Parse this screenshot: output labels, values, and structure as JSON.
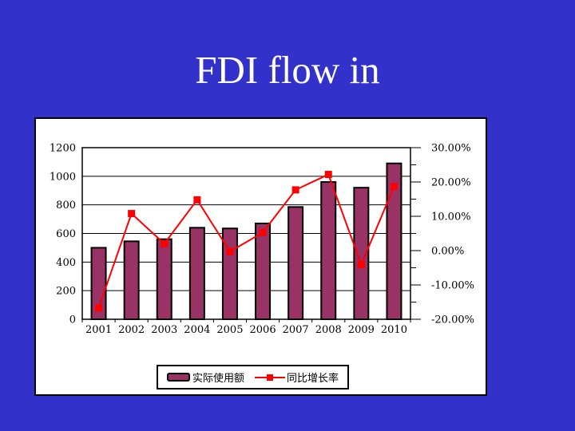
{
  "slide": {
    "background_color": "#3231CA",
    "title": "FDI flow in",
    "title_color": "#FFFFFF"
  },
  "chart_data": {
    "type": "bar+line",
    "title": "",
    "categories": [
      "2001",
      "2002",
      "2003",
      "2004",
      "2005",
      "2006",
      "2007",
      "2008",
      "2009",
      "2010"
    ],
    "series": [
      {
        "name": "实际使用额",
        "type": "bar",
        "axis": "left",
        "color": "#993366",
        "values": [
          500,
          545,
          560,
          640,
          635,
          670,
          785,
          960,
          920,
          1090
        ]
      },
      {
        "name": "同比增长率",
        "type": "line",
        "axis": "right",
        "color": "#FF0000",
        "values": [
          -16.7,
          10.8,
          2.0,
          14.8,
          -0.3,
          5.3,
          17.7,
          22.2,
          -4.1,
          18.7
        ]
      }
    ],
    "left_axis": {
      "min": 0,
      "max": 1200,
      "step": 200,
      "tick_labels": [
        "1200",
        "1000",
        "800",
        "600",
        "400",
        "200",
        "0"
      ]
    },
    "right_axis": {
      "min": -20,
      "max": 30,
      "step": 10,
      "minor_step": 5,
      "tick_labels": [
        "30.00%",
        "20.00%",
        "10.00%",
        "0.00%",
        "-10.00%",
        "-20.00%"
      ]
    },
    "grid": "horizontal",
    "legend_position": "bottom",
    "plot_background": "#FFFFFF",
    "axis_text_color": "#000000",
    "grid_color": "#000000"
  }
}
